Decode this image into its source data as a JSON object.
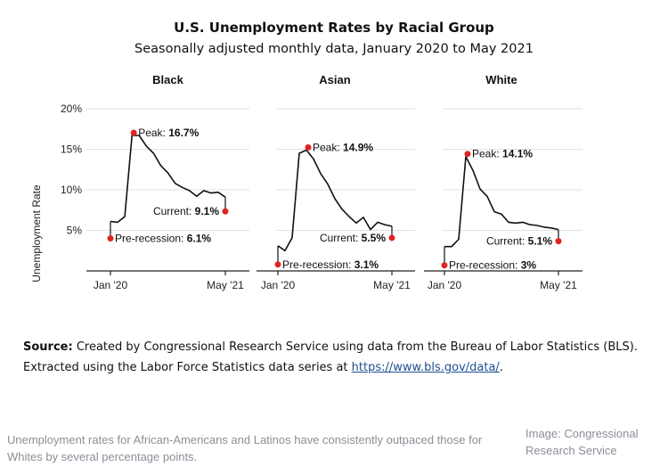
{
  "chart_data": {
    "type": "line",
    "title": "U.S. Unemployment Rates by Racial Group",
    "subtitle": "Seasonally adjusted monthly data, January 2020 to May 2021",
    "ylabel": "Unemployment Rate",
    "ylim": [
      2,
      20
    ],
    "yticks": [
      "20%",
      "15%",
      "10%",
      "5%"
    ],
    "ytick_values": [
      20,
      15,
      10,
      5
    ],
    "xtick_labels": [
      "Jan '20",
      "May '21"
    ],
    "grid": true,
    "series": [
      {
        "name": "Black",
        "x": [
          "Jan '20",
          "Feb '20",
          "Mar '20",
          "Apr '20",
          "May '20",
          "Jun '20",
          "Jul '20",
          "Aug '20",
          "Sep '20",
          "Oct '20",
          "Nov '20",
          "Dec '20",
          "Jan '21",
          "Feb '21",
          "Mar '21",
          "Apr '21",
          "May '21"
        ],
        "values": [
          6.1,
          6.0,
          6.7,
          16.7,
          16.7,
          15.4,
          14.5,
          13.0,
          12.1,
          10.8,
          10.3,
          9.9,
          9.2,
          9.9,
          9.6,
          9.7,
          9.1
        ],
        "annotations": {
          "peak": {
            "label": "Peak: ",
            "value": "16.7%",
            "index": 3
          },
          "pre": {
            "label": "Pre-recession: ",
            "value": "6.1%",
            "index": 0
          },
          "current": {
            "label": "Current: ",
            "value": "9.1%",
            "index": 16
          }
        }
      },
      {
        "name": "Asian",
        "x": [
          "Jan '20",
          "Feb '20",
          "Mar '20",
          "Apr '20",
          "May '20",
          "Jun '20",
          "Jul '20",
          "Aug '20",
          "Sep '20",
          "Oct '20",
          "Nov '20",
          "Dec '20",
          "Jan '21",
          "Feb '21",
          "Mar '21",
          "Apr '21",
          "May '21"
        ],
        "values": [
          3.1,
          2.5,
          4.1,
          14.5,
          14.9,
          13.8,
          12.0,
          10.7,
          8.9,
          7.6,
          6.7,
          5.9,
          6.6,
          5.1,
          6.0,
          5.7,
          5.5
        ],
        "annotations": {
          "peak": {
            "label": "Peak: ",
            "value": "14.9%",
            "index": 4
          },
          "pre": {
            "label": "Pre-recession: ",
            "value": "3.1%",
            "index": 0
          },
          "current": {
            "label": "Current: ",
            "value": "5.5%",
            "index": 16
          }
        }
      },
      {
        "name": "White",
        "x": [
          "Jan '20",
          "Feb '20",
          "Mar '20",
          "Apr '20",
          "May '20",
          "Jun '20",
          "Jul '20",
          "Aug '20",
          "Sep '20",
          "Oct '20",
          "Nov '20",
          "Dec '20",
          "Jan '21",
          "Feb '21",
          "Mar '21",
          "Apr '21",
          "May '21"
        ],
        "values": [
          3.0,
          3.0,
          3.9,
          14.1,
          12.4,
          10.1,
          9.2,
          7.3,
          7.0,
          6.0,
          5.9,
          6.0,
          5.7,
          5.6,
          5.4,
          5.3,
          5.1
        ],
        "annotations": {
          "peak": {
            "label": "Peak: ",
            "value": "14.1%",
            "index": 3
          },
          "pre": {
            "label": "Pre-recession: ",
            "value": "3%",
            "index": 0
          },
          "current": {
            "label": "Current: ",
            "value": "5.1%",
            "index": 16
          }
        }
      }
    ],
    "colors": {
      "line": "#111111",
      "marker": "#e02424",
      "grid": "#e2e2e2",
      "axis": "#222222"
    }
  },
  "source": {
    "label": "Source:",
    "text": "Created by Congressional Research Service using data from the Bureau of Labor Statistics (BLS). Extracted using the Labor Force Statistics data series at",
    "link": "https://www.bls.gov/data/",
    "end": "."
  },
  "caption": "Unemployment rates for African-Americans and Latinos have consistently outpaced those for Whites by several percentage points.",
  "credit": "Image: Congressional Research Service"
}
